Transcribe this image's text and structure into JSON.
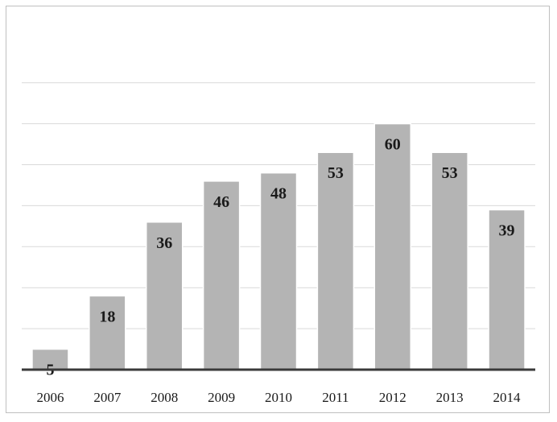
{
  "chart_data": {
    "type": "bar",
    "categories": [
      "2006",
      "2007",
      "2008",
      "2009",
      "2010",
      "2011",
      "2012",
      "2013",
      "2014"
    ],
    "values": [
      5,
      18,
      36,
      46,
      48,
      53,
      60,
      53,
      39
    ],
    "ylim": [
      0,
      70
    ],
    "grid": true,
    "bar_color": "#b4b4b4",
    "bar_edge_color": "#ffffff",
    "axis_color": "#3a3a3a",
    "grid_color": "#d9d9d9",
    "data_labels": true
  }
}
